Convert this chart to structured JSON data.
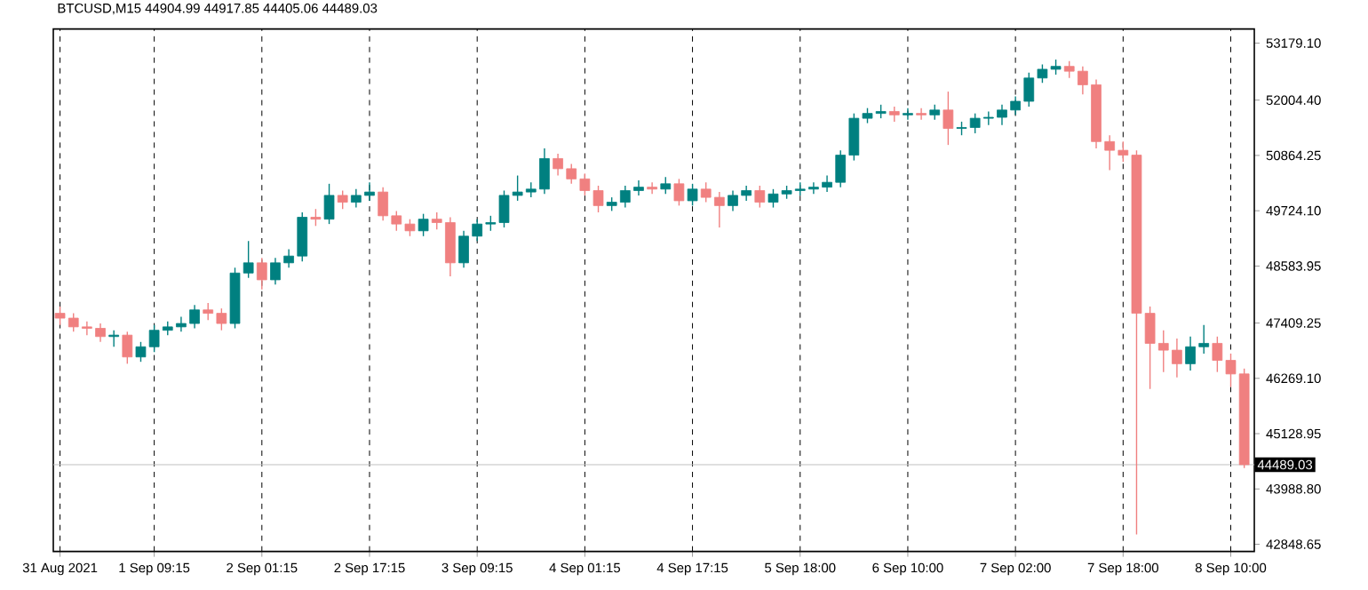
{
  "chart_data": {
    "type": "candlestick",
    "title": "BTCUSD,M15  44904.99 44917.85 44405.06 44489.03",
    "categories": [
      "31 Aug 2021",
      null,
      null,
      null,
      null,
      null,
      null,
      "1 Sep 09:15",
      null,
      null,
      null,
      null,
      null,
      null,
      null,
      "2 Sep 01:15",
      null,
      null,
      null,
      null,
      null,
      null,
      null,
      "2 Sep 17:15",
      null,
      null,
      null,
      null,
      null,
      null,
      null,
      "3 Sep 09:15",
      null,
      null,
      null,
      null,
      null,
      null,
      null,
      "4 Sep 01:15",
      null,
      null,
      null,
      null,
      null,
      null,
      null,
      "4 Sep 17:15",
      null,
      null,
      null,
      null,
      null,
      null,
      null,
      "5 Sep 18:00",
      null,
      null,
      null,
      null,
      null,
      null,
      null,
      "6 Sep 10:00",
      null,
      null,
      null,
      null,
      null,
      null,
      null,
      "7 Sep 02:00",
      null,
      null,
      null,
      null,
      null,
      null,
      null,
      "7 Sep 18:00",
      null,
      null,
      null,
      null,
      null,
      null,
      null,
      "8 Sep 10:00",
      null
    ],
    "ohlc": [
      [
        47610,
        47750,
        47370,
        47510
      ],
      [
        47510,
        47610,
        47230,
        47330
      ],
      [
        47330,
        47440,
        47160,
        47300
      ],
      [
        47300,
        47400,
        47020,
        47130
      ],
      [
        47130,
        47260,
        46920,
        47160
      ],
      [
        47160,
        47230,
        46570,
        46710
      ],
      [
        46710,
        47020,
        46610,
        46920
      ],
      [
        46920,
        47370,
        46810,
        47260
      ],
      [
        47260,
        47440,
        47160,
        47330
      ],
      [
        47330,
        47540,
        47230,
        47400
      ],
      [
        47400,
        47780,
        47300,
        47680
      ],
      [
        47680,
        47820,
        47470,
        47610
      ],
      [
        47610,
        47710,
        47260,
        47400
      ],
      [
        47400,
        48550,
        47300,
        48440
      ],
      [
        48440,
        49100,
        48340,
        48650
      ],
      [
        48650,
        48750,
        48100,
        48300
      ],
      [
        48300,
        48750,
        48200,
        48650
      ],
      [
        48650,
        48930,
        48550,
        48790
      ],
      [
        48790,
        49690,
        48680,
        49590
      ],
      [
        49590,
        49760,
        49410,
        49550
      ],
      [
        49550,
        50280,
        49450,
        50040
      ],
      [
        50040,
        50140,
        49760,
        49900
      ],
      [
        49900,
        50170,
        49790,
        50040
      ],
      [
        50040,
        50310,
        49930,
        50110
      ],
      [
        50110,
        50210,
        49520,
        49620
      ],
      [
        49620,
        49720,
        49310,
        49450
      ],
      [
        49450,
        49550,
        49200,
        49310
      ],
      [
        49310,
        49660,
        49200,
        49550
      ],
      [
        49550,
        49690,
        49340,
        49480
      ],
      [
        49480,
        49590,
        48370,
        48650
      ],
      [
        48650,
        49310,
        48550,
        49200
      ],
      [
        49200,
        49550,
        49100,
        49450
      ],
      [
        49450,
        49620,
        49310,
        49480
      ],
      [
        49480,
        50140,
        49380,
        50040
      ],
      [
        50040,
        50450,
        49930,
        50110
      ],
      [
        50110,
        50310,
        50000,
        50170
      ],
      [
        50170,
        51010,
        50070,
        50800
      ],
      [
        50800,
        50900,
        50450,
        50590
      ],
      [
        50590,
        50690,
        50280,
        50380
      ],
      [
        50380,
        50490,
        50040,
        50140
      ],
      [
        50140,
        50240,
        49690,
        49830
      ],
      [
        49830,
        50000,
        49720,
        49900
      ],
      [
        49900,
        50240,
        49790,
        50140
      ],
      [
        50140,
        50350,
        50040,
        50210
      ],
      [
        50210,
        50310,
        50070,
        50170
      ],
      [
        50170,
        50420,
        50070,
        50280
      ],
      [
        50280,
        50380,
        49830,
        49930
      ],
      [
        49930,
        50280,
        49830,
        50170
      ],
      [
        50170,
        50310,
        49900,
        50000
      ],
      [
        50000,
        50110,
        49380,
        49830
      ],
      [
        49830,
        50140,
        49720,
        50040
      ],
      [
        50040,
        50240,
        49930,
        50140
      ],
      [
        50140,
        50240,
        49790,
        49900
      ],
      [
        49900,
        50170,
        49790,
        50070
      ],
      [
        50070,
        50240,
        49970,
        50140
      ],
      [
        50140,
        50310,
        50040,
        50170
      ],
      [
        50170,
        50310,
        50070,
        50210
      ],
      [
        50210,
        50450,
        50110,
        50310
      ],
      [
        50310,
        50970,
        50210,
        50870
      ],
      [
        50870,
        51730,
        50760,
        51630
      ],
      [
        51630,
        51840,
        51530,
        51730
      ],
      [
        51730,
        51910,
        51630,
        51770
      ],
      [
        51770,
        51870,
        51560,
        51700
      ],
      [
        51700,
        51840,
        51600,
        51730
      ],
      [
        51730,
        51840,
        51600,
        51700
      ],
      [
        51700,
        51910,
        51600,
        51800
      ],
      [
        51800,
        52180,
        51080,
        51420
      ],
      [
        51420,
        51560,
        51280,
        51440
      ],
      [
        51440,
        51730,
        51320,
        51630
      ],
      [
        51630,
        51770,
        51490,
        51650
      ],
      [
        51650,
        51910,
        51490,
        51800
      ],
      [
        51800,
        52080,
        51700,
        51980
      ],
      [
        51980,
        52570,
        51870,
        52460
      ],
      [
        52460,
        52740,
        52360,
        52640
      ],
      [
        52640,
        52840,
        52530,
        52700
      ],
      [
        52700,
        52810,
        52460,
        52600
      ],
      [
        52600,
        52700,
        52120,
        52320
      ],
      [
        52320,
        52430,
        51010,
        51150
      ],
      [
        51150,
        51280,
        50560,
        50970
      ],
      [
        50970,
        51150,
        50730,
        50870
      ],
      [
        50870,
        50970,
        43050,
        47610
      ],
      [
        47610,
        47750,
        46050,
        46990
      ],
      [
        46990,
        47260,
        46400,
        46850
      ],
      [
        46850,
        47090,
        46290,
        46570
      ],
      [
        46570,
        47130,
        46430,
        46920
      ],
      [
        46920,
        47370,
        46780,
        46990
      ],
      [
        46990,
        47130,
        46400,
        46640
      ],
      [
        46640,
        46780,
        46090,
        46360
      ],
      [
        46360,
        46470,
        44420,
        44489.03
      ]
    ],
    "colors": [
      "#f08080",
      "#f08080",
      "#f08080",
      "#f08080",
      "#008080",
      "#f08080",
      "#008080",
      "#008080",
      "#008080",
      "#008080",
      "#008080",
      "#f08080",
      "#f08080",
      "#008080",
      "#008080",
      "#f08080",
      "#008080",
      "#008080",
      "#008080",
      "#f08080",
      "#008080",
      "#f08080",
      "#008080",
      "#008080",
      "#f08080",
      "#f08080",
      "#f08080",
      "#008080",
      "#f08080",
      "#f08080",
      "#008080",
      "#008080",
      "#008080",
      "#008080",
      "#008080",
      "#008080",
      "#008080",
      "#f08080",
      "#f08080",
      "#f08080",
      "#f08080",
      "#008080",
      "#008080",
      "#008080",
      "#f08080",
      "#008080",
      "#f08080",
      "#008080",
      "#f08080",
      "#f08080",
      "#008080",
      "#008080",
      "#f08080",
      "#008080",
      "#008080",
      "#008080",
      "#008080",
      "#008080",
      "#008080",
      "#008080",
      "#008080",
      "#008080",
      "#f08080",
      "#008080",
      "#f08080",
      "#008080",
      "#f08080",
      "#008080",
      "#008080",
      "#008080",
      "#008080",
      "#008080",
      "#008080",
      "#008080",
      "#008080",
      "#f08080",
      "#f08080",
      "#f08080",
      "#f08080",
      "#f08080",
      "#f08080",
      "#f08080",
      "#f08080",
      "#f08080",
      "#008080",
      "#008080",
      "#f08080",
      "#f08080",
      "#f08080"
    ],
    "ylim": [
      42700,
      53470
    ],
    "yticks": [
      {
        "value": 53179.1,
        "label": "53179.10"
      },
      {
        "value": 52004.4,
        "label": "52004.40"
      },
      {
        "value": 50864.25,
        "label": "50864.25"
      },
      {
        "value": 49724.1,
        "label": "49724.10"
      },
      {
        "value": 48583.95,
        "label": "48583.95"
      },
      {
        "value": 47409.25,
        "label": "47409.25"
      },
      {
        "value": 46269.1,
        "label": "46269.10"
      },
      {
        "value": 45128.95,
        "label": "45128.95"
      },
      {
        "value": 43988.8,
        "label": "43988.80"
      },
      {
        "value": 42848.65,
        "label": "42848.65"
      }
    ],
    "grid": "x",
    "ref_lines": [
      {
        "axis": "y",
        "value": 44489.03,
        "label": "44489.03",
        "color": "#c0c0c0",
        "line_style": "solid"
      }
    ]
  }
}
